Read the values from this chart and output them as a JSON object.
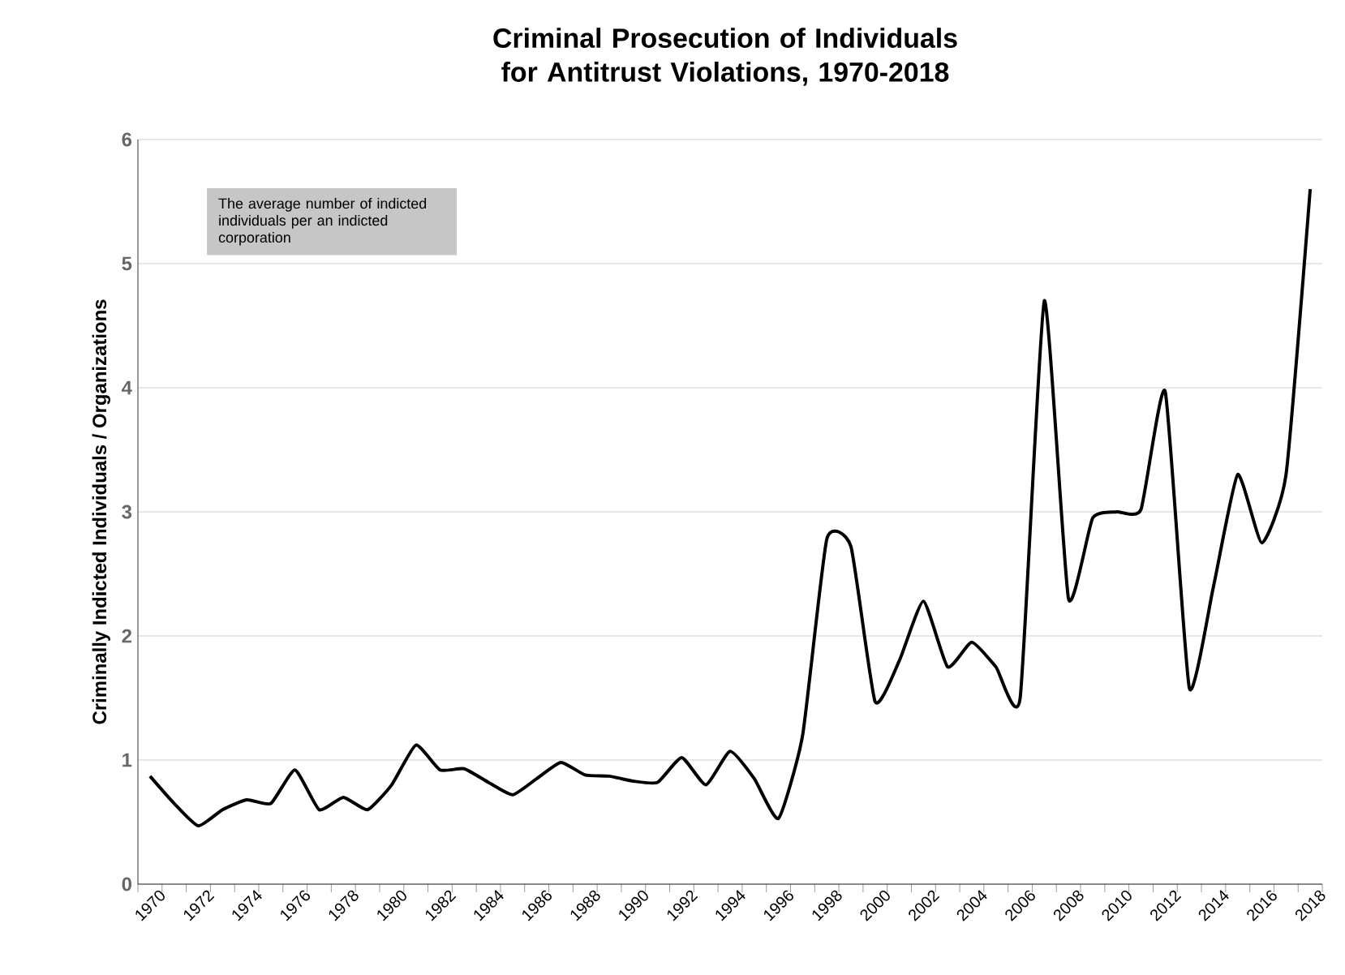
{
  "chart_data": {
    "type": "line",
    "title": "Criminal Prosecution of Individuals for Antitrust Violations, 1970-2018",
    "ylabel": "Criminally Indicted Individuals / Organizations",
    "categories": [
      "1970",
      null,
      "1972",
      null,
      "1974",
      null,
      "1976",
      null,
      "1978",
      null,
      "1980",
      null,
      "1982",
      null,
      "1984",
      null,
      "1986",
      null,
      "1988",
      null,
      "1990",
      null,
      "1992",
      null,
      "1994",
      null,
      "1996",
      null,
      "1998",
      null,
      "2000",
      null,
      "2002",
      null,
      "2004",
      null,
      "2006",
      null,
      "2008",
      null,
      "2010",
      null,
      "2012",
      null,
      "2014",
      null,
      "2016",
      null,
      "2018"
    ],
    "values": [
      0.87,
      0.65,
      0.47,
      0.6,
      0.68,
      0.65,
      0.92,
      0.6,
      0.7,
      0.6,
      0.8,
      1.12,
      0.92,
      0.93,
      0.82,
      0.72,
      0.85,
      0.98,
      0.88,
      0.87,
      0.83,
      0.82,
      1.02,
      0.8,
      1.07,
      0.85,
      0.53,
      1.2,
      2.78,
      2.72,
      1.47,
      1.8,
      2.28,
      1.75,
      1.95,
      1.75,
      1.5,
      4.7,
      2.3,
      2.95,
      3.0,
      3.02,
      3.97,
      1.58,
      2.4,
      3.3,
      2.75,
      3.3,
      5.6
    ],
    "color": "#000000",
    "ylim": [
      0,
      6
    ],
    "yticks": [
      0,
      1,
      2,
      3,
      4,
      5,
      6
    ],
    "grid": "y",
    "marker": "none",
    "line_style": "solid",
    "annotations": [
      "The average number of indicted individuals per an indicted corporation"
    ]
  }
}
